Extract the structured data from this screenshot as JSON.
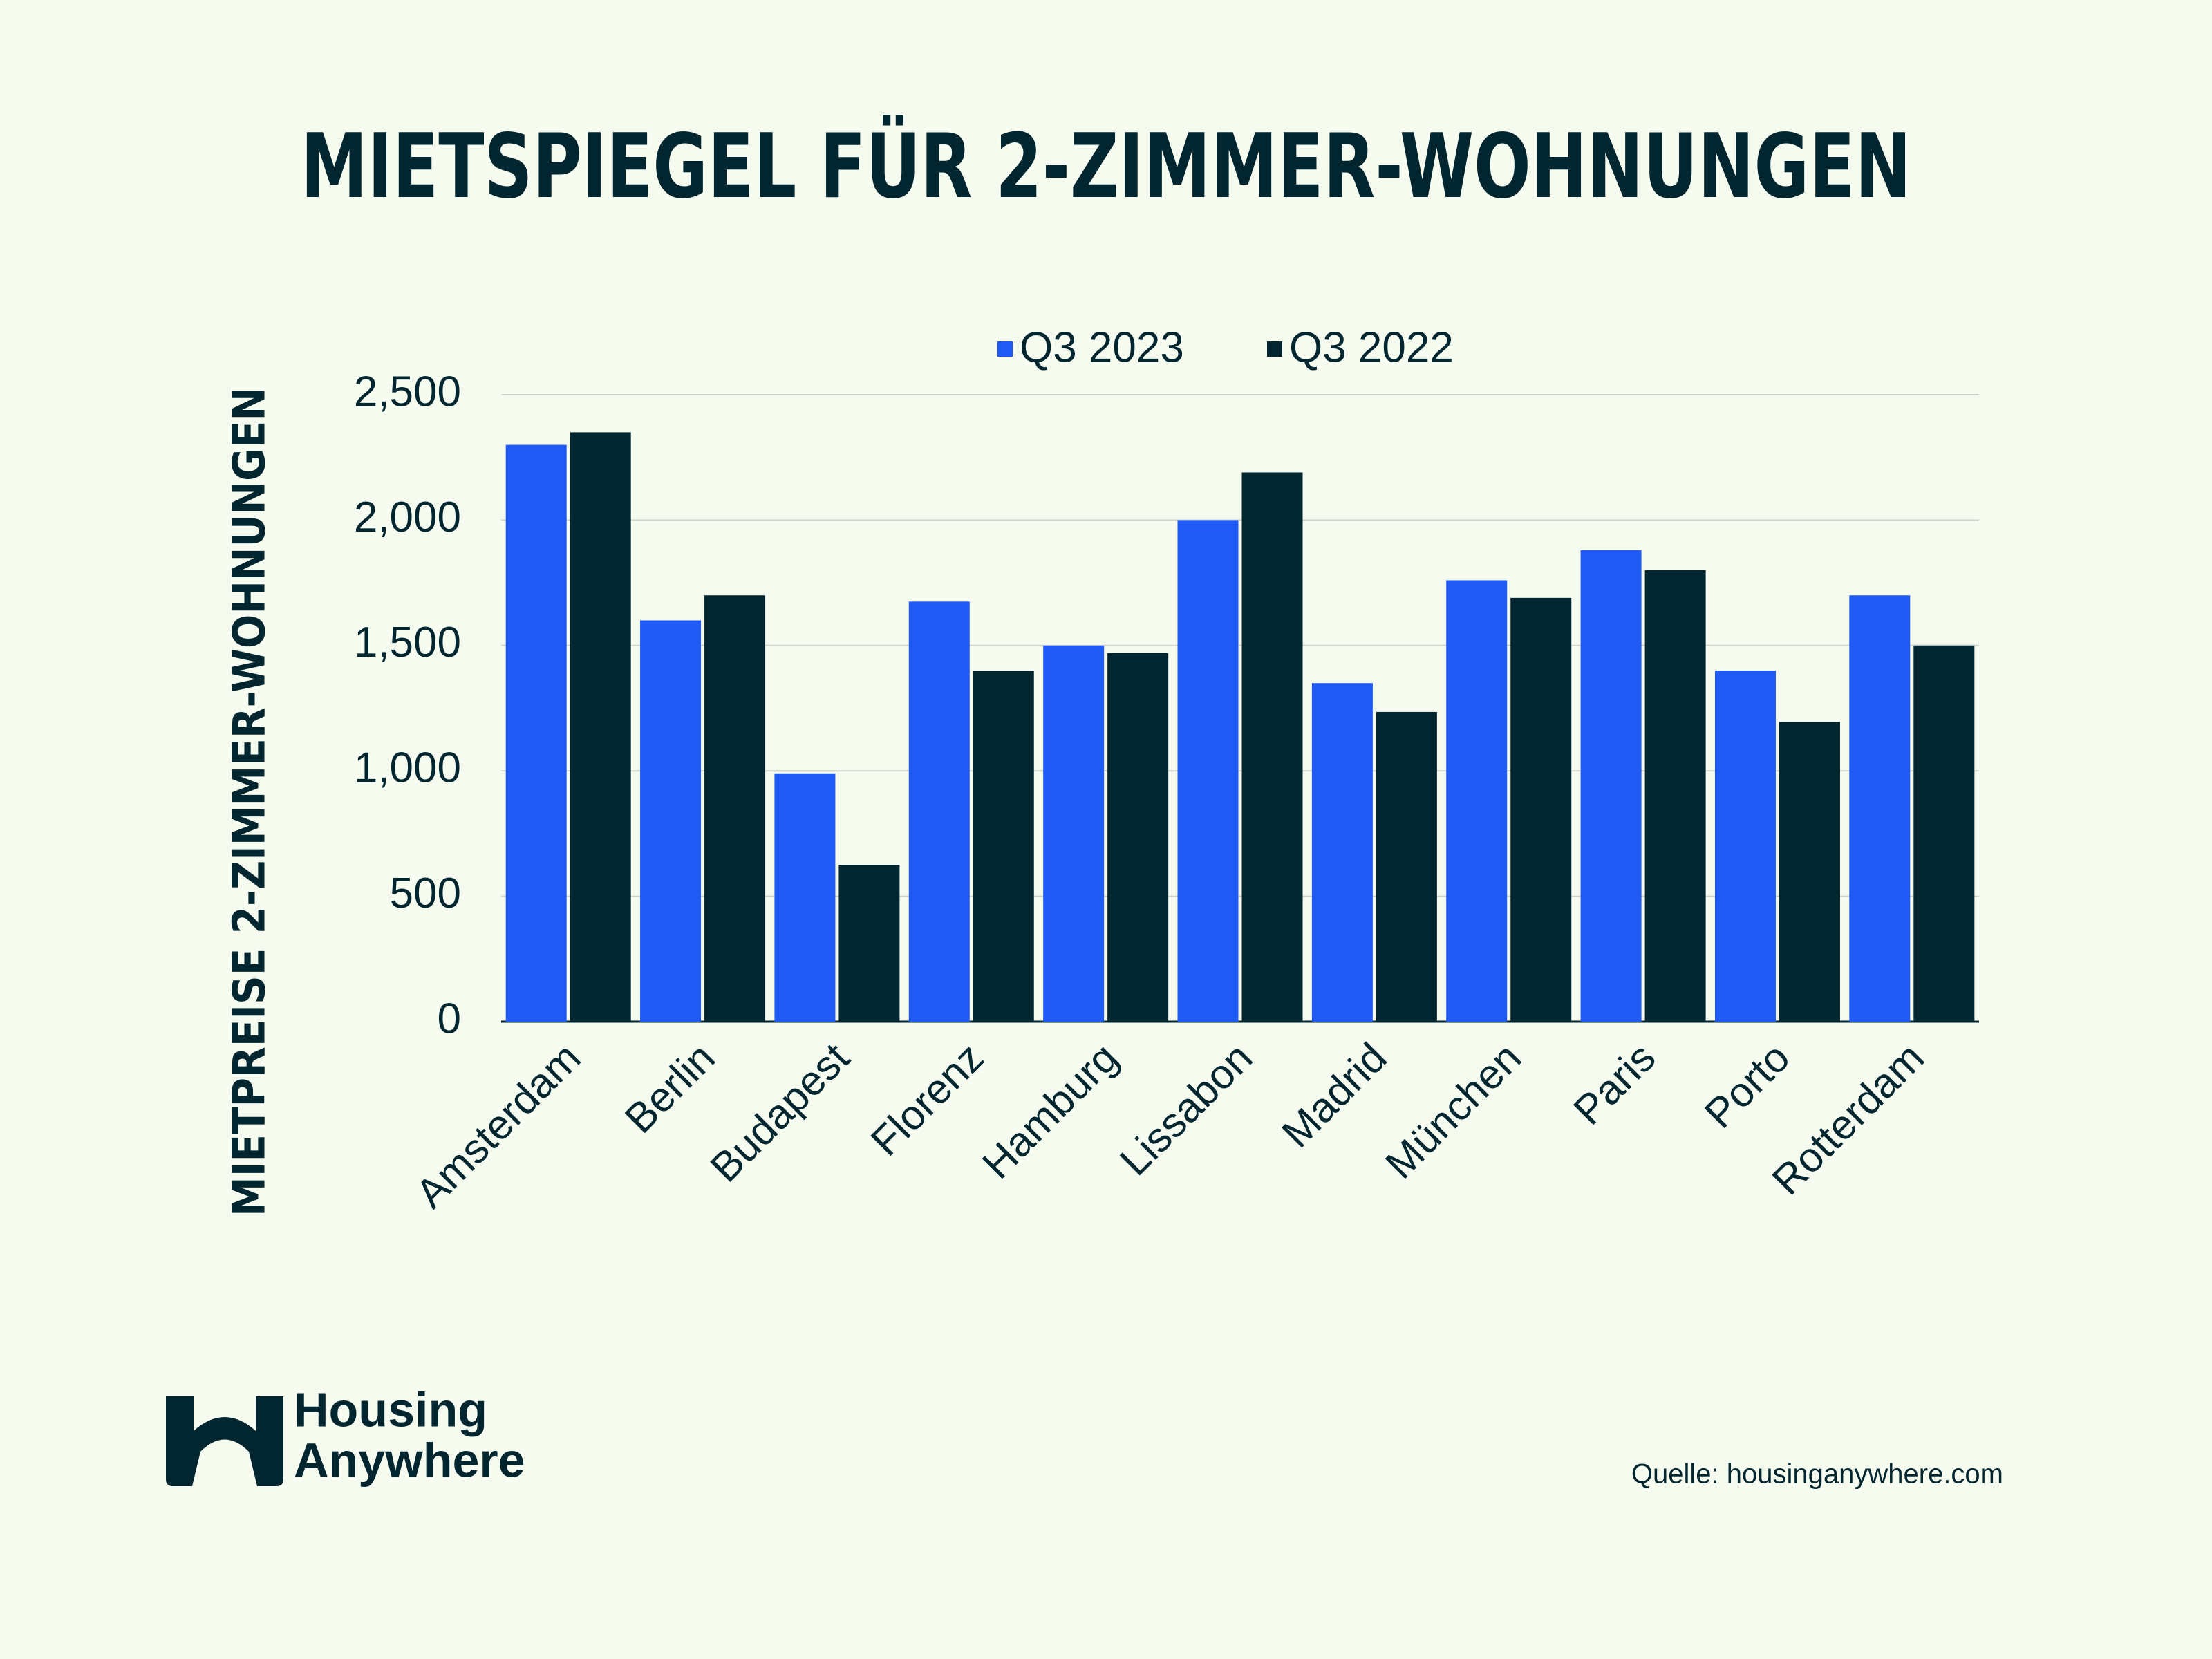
{
  "chart_data": {
    "type": "bar",
    "title": "MIETSPIEGEL FÜR 2-ZIMMER-WOHNUNGEN",
    "y_label": "MIETPREISE 2-ZIMMER-WOHNUNGEN",
    "categories": [
      "Amsterdam",
      "Berlin",
      "Budapest",
      "Florenz",
      "Hamburg",
      "Lissabon",
      "Madrid",
      "München",
      "Paris",
      "Porto",
      "Rotterdam"
    ],
    "series": [
      {
        "name": "Q3 2023",
        "color": "#1f5af5",
        "values": [
          2300,
          1600,
          990,
          1675,
          1500,
          2000,
          1350,
          1760,
          1880,
          1400,
          1700
        ]
      },
      {
        "name": "Q3 2022",
        "color": "#022630",
        "values": [
          2350,
          1700,
          625,
          1400,
          1470,
          2190,
          1235,
          1690,
          1800,
          1195,
          1500
        ]
      }
    ],
    "ylim": [
      0,
      2500
    ],
    "yticks": [
      0,
      500,
      {
        "value": 1000,
        "label": "1,000"
      },
      {
        "value": 1500,
        "label": "1,500"
      },
      {
        "value": 2000,
        "label": "2,000"
      },
      {
        "value": 2500,
        "label": "2,500"
      }
    ],
    "grid": true,
    "legend": "top",
    "source": "Quelle: housinganywhere.com"
  },
  "logo": {
    "lines": [
      "Housing",
      "Anywhere"
    ]
  }
}
